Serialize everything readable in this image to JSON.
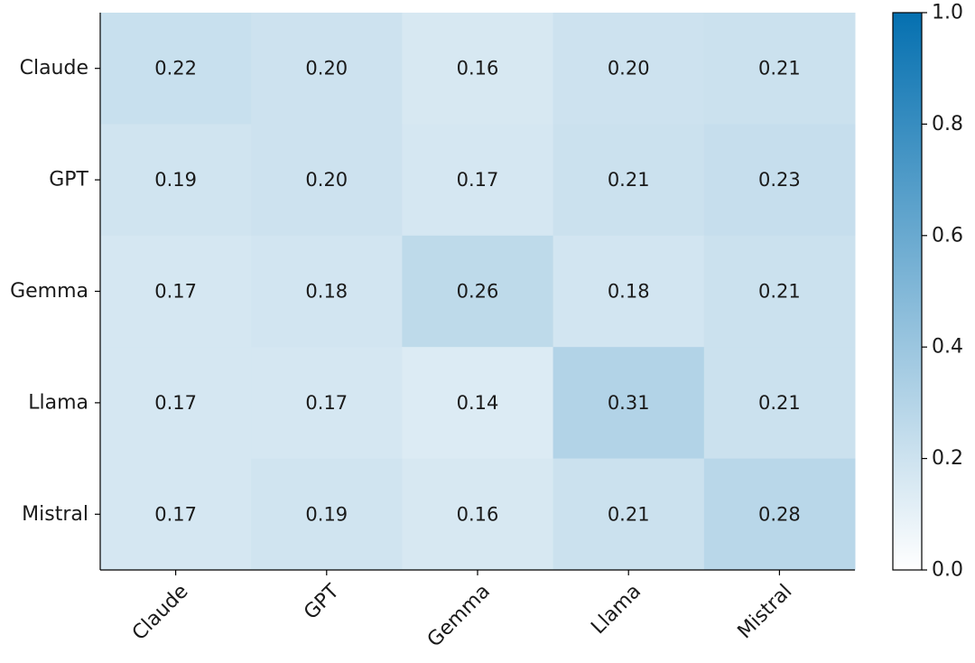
{
  "chart_data": {
    "type": "heatmap",
    "title": "",
    "xlabel": "",
    "ylabel": "",
    "rows": [
      "Claude",
      "GPT",
      "Gemma",
      "Llama",
      "Mistral"
    ],
    "columns": [
      "Claude",
      "GPT",
      "Gemma",
      "Llama",
      "Mistral"
    ],
    "values": [
      [
        0.22,
        0.2,
        0.16,
        0.2,
        0.21
      ],
      [
        0.19,
        0.2,
        0.17,
        0.21,
        0.23
      ],
      [
        0.17,
        0.18,
        0.26,
        0.18,
        0.21
      ],
      [
        0.17,
        0.17,
        0.14,
        0.31,
        0.21
      ],
      [
        0.17,
        0.19,
        0.16,
        0.21,
        0.28
      ]
    ],
    "value_format": "0.00",
    "colorbar": {
      "min": 0.0,
      "max": 1.0,
      "ticks": [
        "0.0",
        "0.2",
        "0.4",
        "0.6",
        "0.8",
        "1.0"
      ],
      "colormap": "white-to-blue",
      "color_low": "#ffffff",
      "color_high": "#0570b0"
    },
    "grid": false,
    "legend": "colorbar-right"
  }
}
